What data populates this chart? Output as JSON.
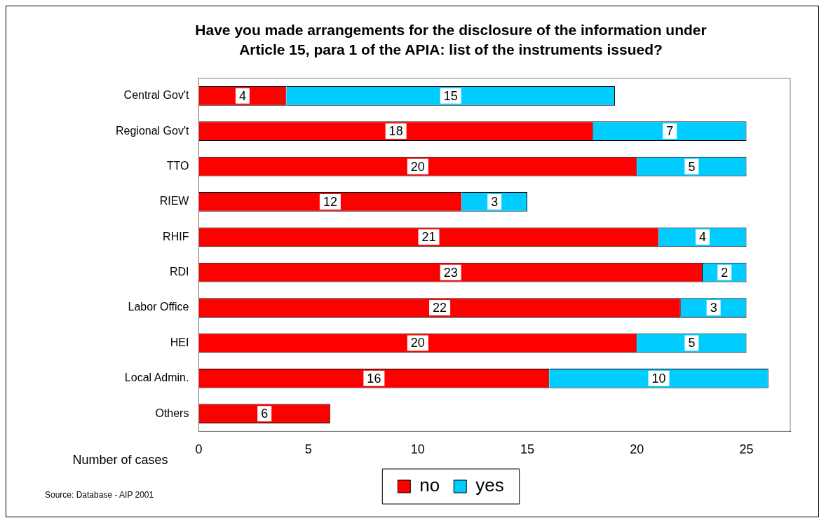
{
  "chart_data": {
    "type": "bar",
    "orientation": "horizontal",
    "stacked": true,
    "title": "Have you made arrangements for the disclosure of the information under Article 15, para 1 of the APIA: list of the instruments issued?",
    "xlabel": "Number of cases",
    "categories": [
      "Central Gov't",
      "Regional Gov't",
      "TTO",
      "RIEW",
      "RHIF",
      "RDI",
      "Labor Office",
      "HEI",
      "Local Admin.",
      "Others"
    ],
    "series": [
      {
        "name": "no",
        "color": "#ff0000",
        "values": [
          4,
          18,
          20,
          12,
          21,
          23,
          22,
          20,
          16,
          6
        ]
      },
      {
        "name": "yes",
        "color": "#00ccff",
        "values": [
          15,
          7,
          5,
          3,
          4,
          2,
          3,
          5,
          10,
          null
        ]
      }
    ],
    "xlim": [
      0,
      27
    ],
    "xticks": [
      0,
      5,
      10,
      15,
      20,
      25
    ],
    "grid": false,
    "legend": "bottom",
    "data_labels": true,
    "annotations": [
      "Source: Database - AIP 2001"
    ]
  }
}
